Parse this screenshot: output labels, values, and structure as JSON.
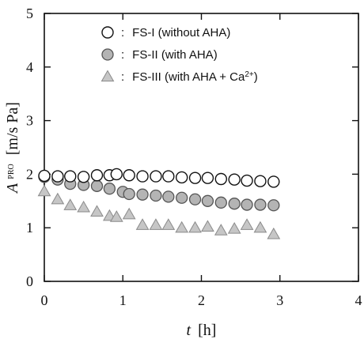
{
  "chart_data": {
    "type": "scatter",
    "xlabel": {
      "symbol": "t",
      "unit": "[h]"
    },
    "ylabel": {
      "symbol": "A",
      "superscript": "PRO",
      "unit": "[m/s Pa]"
    },
    "xlim": [
      0,
      4
    ],
    "ylim": [
      0,
      5
    ],
    "xticks": [
      "0",
      "1",
      "2",
      "3",
      "4"
    ],
    "yticks": [
      "0",
      "1",
      "2",
      "3",
      "4",
      "5"
    ],
    "grid": false,
    "legend_position": "top-center",
    "series": [
      {
        "name": "FS-I (without AHA)",
        "marker": "circle-open",
        "color": "#ffffff",
        "x": [
          0.0,
          0.17,
          0.33,
          0.5,
          0.67,
          0.83,
          0.92,
          1.08,
          1.25,
          1.42,
          1.58,
          1.75,
          1.92,
          2.08,
          2.25,
          2.42,
          2.58,
          2.75,
          2.92
        ],
        "y": [
          1.97,
          1.96,
          1.96,
          1.95,
          1.98,
          1.98,
          2.0,
          1.98,
          1.96,
          1.96,
          1.96,
          1.94,
          1.93,
          1.93,
          1.91,
          1.9,
          1.88,
          1.87,
          1.86
        ]
      },
      {
        "name": "FS-II (with AHA)",
        "marker": "circle-filled",
        "color": "#b4b4b4",
        "x": [
          0.0,
          0.17,
          0.33,
          0.5,
          0.67,
          0.83,
          1.0,
          1.08,
          1.25,
          1.42,
          1.58,
          1.75,
          1.92,
          2.08,
          2.25,
          2.42,
          2.58,
          2.75,
          2.92
        ],
        "y": [
          1.95,
          1.9,
          1.82,
          1.8,
          1.78,
          1.73,
          1.67,
          1.63,
          1.62,
          1.6,
          1.58,
          1.56,
          1.53,
          1.5,
          1.47,
          1.45,
          1.43,
          1.43,
          1.42
        ]
      },
      {
        "name": "FS-III (with AHA + Ca2+)",
        "legend_label": {
          "main": "FS-III (with AHA + Ca",
          "superscript": "2+",
          "tail": ")"
        },
        "marker": "triangle",
        "color": "#c6c6c6",
        "x": [
          0.0,
          0.17,
          0.33,
          0.5,
          0.67,
          0.83,
          0.92,
          1.08,
          1.25,
          1.42,
          1.58,
          1.75,
          1.92,
          2.08,
          2.25,
          2.42,
          2.58,
          2.75,
          2.92
        ],
        "y": [
          1.68,
          1.53,
          1.42,
          1.38,
          1.3,
          1.22,
          1.2,
          1.25,
          1.05,
          1.05,
          1.05,
          1.0,
          1.0,
          1.02,
          0.95,
          0.98,
          1.05,
          1.0,
          0.88
        ]
      }
    ]
  }
}
